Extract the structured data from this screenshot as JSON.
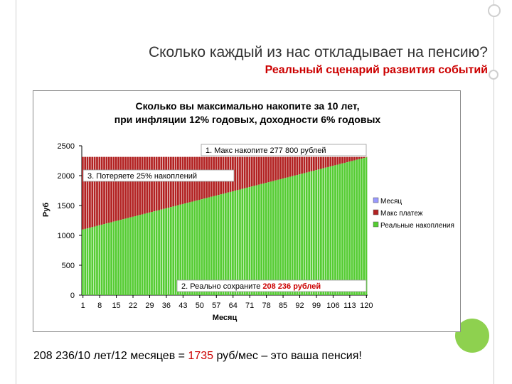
{
  "slide": {
    "heading": "Сколько каждый из нас откладывает на пенсию?",
    "subheading": "Реальный сценарий развития событий",
    "footer_prefix": "208 236/10 лет/12 месяцев = ",
    "footer_highlight": "1735",
    "footer_suffix": " руб/мес – это ваша пенсия!"
  },
  "colors": {
    "accent_red": "#cc0000",
    "bar_red": "#b22222",
    "bar_green": "#55cc33",
    "deco_green": "#8ed14f"
  },
  "chart_data": {
    "type": "bar",
    "stacked": true,
    "title_line1": "Сколько вы максимально накопите за 10 лет,",
    "title_line2": "при инфляции 12% годовых, доходности 6% годовых",
    "xlabel": "Месяц",
    "ylabel": "Руб",
    "x_range": [
      1,
      120
    ],
    "x_ticks": [
      "1",
      "8",
      "15",
      "22",
      "29",
      "36",
      "43",
      "50",
      "57",
      "64",
      "71",
      "78",
      "85",
      "92",
      "99",
      "106",
      "113",
      "120"
    ],
    "y_ticks": [
      "0",
      "500",
      "1000",
      "1500",
      "2000",
      "2500"
    ],
    "ylim": [
      0,
      2500
    ],
    "series": [
      {
        "name": "Месяц",
        "color": "#9999ff"
      },
      {
        "name": "Макс платеж",
        "color": "#b22222",
        "value_constant": 2314
      },
      {
        "name": "Реальные накопления",
        "color": "#55cc33",
        "start": 1098,
        "end": 2306
      }
    ],
    "legend_position": "right",
    "annotations": {
      "max": "1. Макс накопите 277 800 рублей",
      "lost": "3. Потеряете 25% накоплений",
      "real_prefix": "2. Реально сохраните ",
      "real_value": "208 236 рублей"
    }
  }
}
